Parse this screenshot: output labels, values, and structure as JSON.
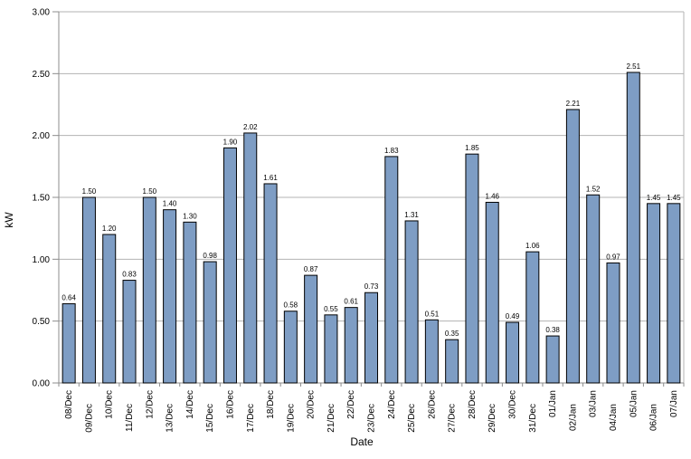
{
  "chart_data": {
    "type": "bar",
    "title": "",
    "xlabel": "Date",
    "ylabel": "kW",
    "categories": [
      "08/Dec",
      "09/Dec",
      "10/Dec",
      "11/Dec",
      "12/Dec",
      "13/Dec",
      "14/Dec",
      "15/Dec",
      "16/Dec",
      "17/Dec",
      "18/Dec",
      "19/Dec",
      "20/Dec",
      "21/Dec",
      "22/Dec",
      "23/Dec",
      "24/Dec",
      "25/Dec",
      "26/Dec",
      "27/Dec",
      "28/Dec",
      "29/Dec",
      "30/Dec",
      "31/Dec",
      "01/Jan",
      "02/Jan",
      "03/Jan",
      "04/Jan",
      "05/Jan",
      "06/Jan",
      "07/Jan"
    ],
    "values": [
      0.64,
      1.5,
      1.2,
      0.83,
      1.5,
      1.4,
      1.3,
      0.98,
      1.9,
      2.02,
      1.61,
      0.58,
      0.87,
      0.55,
      0.61,
      0.73,
      1.83,
      1.31,
      0.51,
      0.35,
      1.85,
      1.46,
      0.49,
      1.06,
      0.38,
      2.21,
      1.52,
      0.97,
      2.51,
      1.45,
      1.45
    ],
    "value_labels": [
      "0.64",
      "1.50",
      "1.20",
      "0.83",
      "1.50",
      "1.40",
      "1.30",
      "0.98",
      "1.90",
      "2.02",
      "1.61",
      "0.58",
      "0.87",
      "0.55",
      "0.61",
      "0.73",
      "1.83",
      "1.31",
      "0.51",
      "0.35",
      "1.85",
      "1.46",
      "0.49",
      "1.06",
      "0.38",
      "2.21",
      "1.52",
      "0.97",
      "2.51",
      "1.45",
      "1.45"
    ],
    "ytick_labels": [
      "0.00",
      "0.50",
      "1.00",
      "1.50",
      "2.00",
      "2.50",
      "3.00"
    ],
    "ylim": [
      0,
      3
    ],
    "ytick_step": 0.5,
    "grid": true,
    "legend": "none",
    "colors": {
      "bar_fill": "#7E9DC4",
      "bar_border": "#000000",
      "gridline": "#B3B3B3",
      "axis": "#8C8C8C",
      "plot_border": "#B3B3B3",
      "text": "#000000",
      "background": "#FFFFFF"
    }
  }
}
